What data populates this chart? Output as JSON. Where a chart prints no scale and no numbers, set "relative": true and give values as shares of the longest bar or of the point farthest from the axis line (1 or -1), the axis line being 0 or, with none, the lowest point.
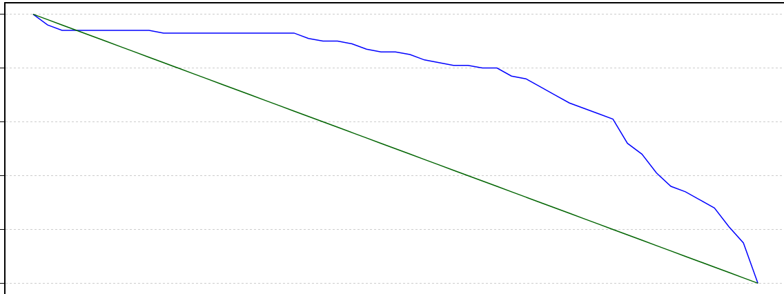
{
  "chart_data": {
    "type": "line",
    "relative": true,
    "grid": "y",
    "legend": false,
    "categories": [
      null,
      null,
      null,
      null,
      null,
      null,
      null,
      null,
      null,
      null,
      null,
      null,
      null,
      null,
      null,
      null,
      null,
      null,
      null,
      null,
      null,
      null,
      null,
      null,
      null,
      null,
      null,
      null,
      null,
      null,
      null,
      null,
      null,
      null,
      null,
      null,
      null,
      null,
      null,
      null,
      null,
      null,
      null,
      null,
      null,
      null,
      null,
      null,
      null,
      null,
      null
    ],
    "series": [
      {
        "color": "#0000ff",
        "values": [
          1.0,
          0.96,
          0.94,
          0.94,
          0.94,
          0.94,
          0.94,
          0.94,
          0.94,
          0.93,
          0.93,
          0.93,
          0.93,
          0.93,
          0.93,
          0.93,
          0.93,
          0.93,
          0.93,
          0.91,
          0.9,
          0.9,
          0.89,
          0.87,
          0.86,
          0.86,
          0.85,
          0.83,
          0.82,
          0.81,
          0.81,
          0.8,
          0.8,
          0.77,
          0.76,
          0.73,
          0.7,
          0.67,
          0.65,
          0.63,
          0.61,
          0.52,
          0.48,
          0.41,
          0.36,
          0.34,
          0.31,
          0.28,
          0.21,
          0.15,
          0.0
        ]
      },
      {
        "color": "#006400",
        "values": [
          1.0,
          0.98,
          0.96,
          0.94,
          0.92,
          0.9,
          0.88,
          0.86,
          0.84,
          0.82,
          0.8,
          0.78,
          0.76,
          0.74,
          0.72,
          0.7,
          0.68,
          0.66,
          0.64,
          0.62,
          0.6,
          0.58,
          0.56,
          0.54,
          0.52,
          0.5,
          0.48,
          0.46,
          0.44,
          0.42,
          0.4,
          0.38,
          0.36,
          0.34,
          0.32,
          0.3,
          0.28,
          0.26,
          0.24,
          0.22,
          0.2,
          0.18,
          0.16,
          0.14,
          0.12,
          0.1,
          0.08,
          0.06,
          0.04,
          0.02,
          0.0
        ]
      }
    ]
  }
}
